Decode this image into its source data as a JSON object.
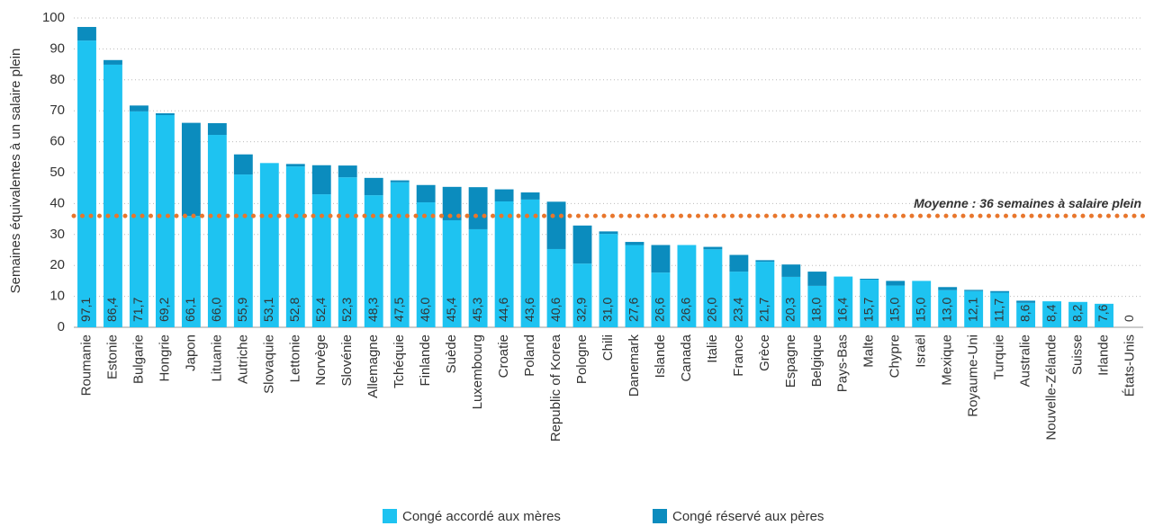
{
  "chart_data": {
    "type": "stacked_bar",
    "y_label": "Semaines équivalentes à un salaire plein",
    "categories": [
      "Roumanie",
      "Estonie",
      "Bulgarie",
      "Hongrie",
      "Japon",
      "Lituanie",
      "Autriche",
      "Slovaquie",
      "Lettonie",
      "Norvège",
      "Slovénie",
      "Allemagne",
      "Tchéquie",
      "Finlande",
      "Suède",
      "Luxembourg",
      "Croatie",
      "Poland",
      "Republic of Korea",
      "Pologne",
      "Chili",
      "Danemark",
      "Islande",
      "Canada",
      "Italie",
      "France",
      "Grèce",
      "Espagne",
      "Belgique",
      "Pays-Bas",
      "Malte",
      "Chypre",
      "Israël",
      "Mexique",
      "Royaume-Uni",
      "Turquie",
      "Australie",
      "Nouvelle-Zélande",
      "Suisse",
      "Irlande",
      "États-Unis"
    ],
    "series": [
      {
        "name": "Congé accordé aux mères",
        "color": "#1ec3f1",
        "values": [
          92.7,
          84.9,
          69.8,
          68.6,
          36.0,
          62.2,
          49.4,
          53.1,
          52.0,
          43.0,
          48.5,
          42.7,
          46.9,
          40.4,
          34.6,
          31.7,
          40.7,
          41.3,
          25.3,
          20.6,
          30.2,
          26.6,
          17.7,
          26.6,
          25.2,
          18.0,
          21.2,
          16.3,
          13.4,
          16.4,
          15.4,
          13.5,
          15.0,
          12.0,
          11.7,
          11.2,
          7.9,
          8.4,
          8.2,
          7.6,
          0
        ]
      },
      {
        "name": "Congé réservé aux pères",
        "color": "#0b8cbe",
        "values": [
          4.4,
          1.5,
          1.9,
          0.6,
          30.1,
          3.8,
          6.5,
          0,
          0.8,
          9.4,
          3.8,
          5.6,
          0.6,
          5.6,
          10.8,
          13.6,
          3.9,
          2.3,
          15.3,
          12.3,
          0.8,
          1.0,
          8.9,
          0,
          0.8,
          5.4,
          0.5,
          4.0,
          4.6,
          0,
          0.3,
          1.5,
          0,
          1.0,
          0.4,
          0.5,
          0.7,
          0,
          0,
          0,
          0
        ]
      }
    ],
    "totals": [
      97.1,
      86.4,
      71.7,
      69.2,
      66.1,
      66.0,
      55.9,
      53.1,
      52.8,
      52.4,
      52.3,
      48.3,
      47.5,
      46.0,
      45.4,
      45.3,
      44.6,
      43.6,
      40.6,
      32.9,
      31.0,
      27.6,
      26.6,
      26.6,
      26.0,
      23.4,
      21.7,
      20.3,
      18.0,
      16.4,
      15.7,
      15.0,
      15.0,
      13.0,
      12.1,
      11.7,
      8.6,
      8.4,
      8.2,
      7.6,
      0
    ],
    "total_labels": [
      "97,1",
      "86,4",
      "71,7",
      "69,2",
      "66,1",
      "66,0",
      "55,9",
      "53,1",
      "52,8",
      "52,4",
      "52,3",
      "48,3",
      "47,5",
      "46,0",
      "45,4",
      "45,3",
      "44,6",
      "43,6",
      "40,6",
      "32,9",
      "31,0",
      "27,6",
      "26,6",
      "26,6",
      "26,0",
      "23,4",
      "21,7",
      "20,3",
      "18,0",
      "16,4",
      "15,7",
      "15,0",
      "15,0",
      "13,0",
      "12,1",
      "11,7",
      "8,6",
      "8,4",
      "8,2",
      "7,6",
      "0"
    ],
    "mean": 36,
    "mean_color": "#e8762c",
    "mean_label": "Moyenne : 36 semaines à salaire plein",
    "ylim": [
      0,
      100
    ],
    "yticks": [
      0,
      10,
      20,
      30,
      40,
      50,
      60,
      70,
      80,
      90,
      100
    ],
    "grid": true
  }
}
